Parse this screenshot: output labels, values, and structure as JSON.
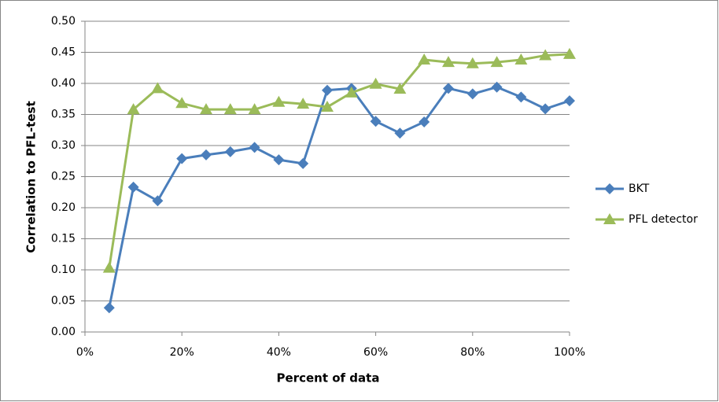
{
  "chart_data": {
    "type": "line",
    "x_label": "Percent of data",
    "y_label": "Correlation to PFL-test",
    "x": [
      5,
      10,
      15,
      20,
      25,
      30,
      35,
      40,
      45,
      50,
      55,
      60,
      65,
      70,
      75,
      80,
      85,
      90,
      95,
      100
    ],
    "series": [
      {
        "name": "BKT",
        "color": "#4a7ebb",
        "marker": "diamond",
        "values": [
          0.039,
          0.233,
          0.211,
          0.279,
          0.285,
          0.29,
          0.297,
          0.277,
          0.271,
          0.389,
          0.392,
          0.339,
          0.32,
          0.338,
          0.392,
          0.383,
          0.394,
          0.378,
          0.359,
          0.372
        ]
      },
      {
        "name": "PFL detector",
        "color": "#9bbb59",
        "marker": "triangle",
        "values": [
          0.103,
          0.358,
          0.392,
          0.368,
          0.358,
          0.358,
          0.358,
          0.37,
          0.367,
          0.362,
          0.385,
          0.399,
          0.391,
          0.438,
          0.434,
          0.432,
          0.434,
          0.438,
          0.445,
          0.447
        ]
      }
    ],
    "xlim": [
      0,
      100
    ],
    "xticks": [
      {
        "value": 0,
        "label": "0%"
      },
      {
        "value": 20,
        "label": "20%"
      },
      {
        "value": 40,
        "label": "40%"
      },
      {
        "value": 60,
        "label": "60%"
      },
      {
        "value": 80,
        "label": "80%"
      },
      {
        "value": 100,
        "label": "100%"
      }
    ],
    "ylim": [
      0,
      0.5
    ],
    "yticks": [
      {
        "value": 0,
        "label": "0.00"
      },
      {
        "value": 0.05,
        "label": "0.05"
      },
      {
        "value": 0.1,
        "label": "0.10"
      },
      {
        "value": 0.15,
        "label": "0.15"
      },
      {
        "value": 0.2,
        "label": "0.20"
      },
      {
        "value": 0.25,
        "label": "0.25"
      },
      {
        "value": 0.3,
        "label": "0.30"
      },
      {
        "value": 0.35,
        "label": "0.35"
      },
      {
        "value": 0.4,
        "label": "0.40"
      },
      {
        "value": 0.45,
        "label": "0.45"
      },
      {
        "value": 0.5,
        "label": "0.50"
      }
    ],
    "grid": true,
    "legend": "right"
  }
}
